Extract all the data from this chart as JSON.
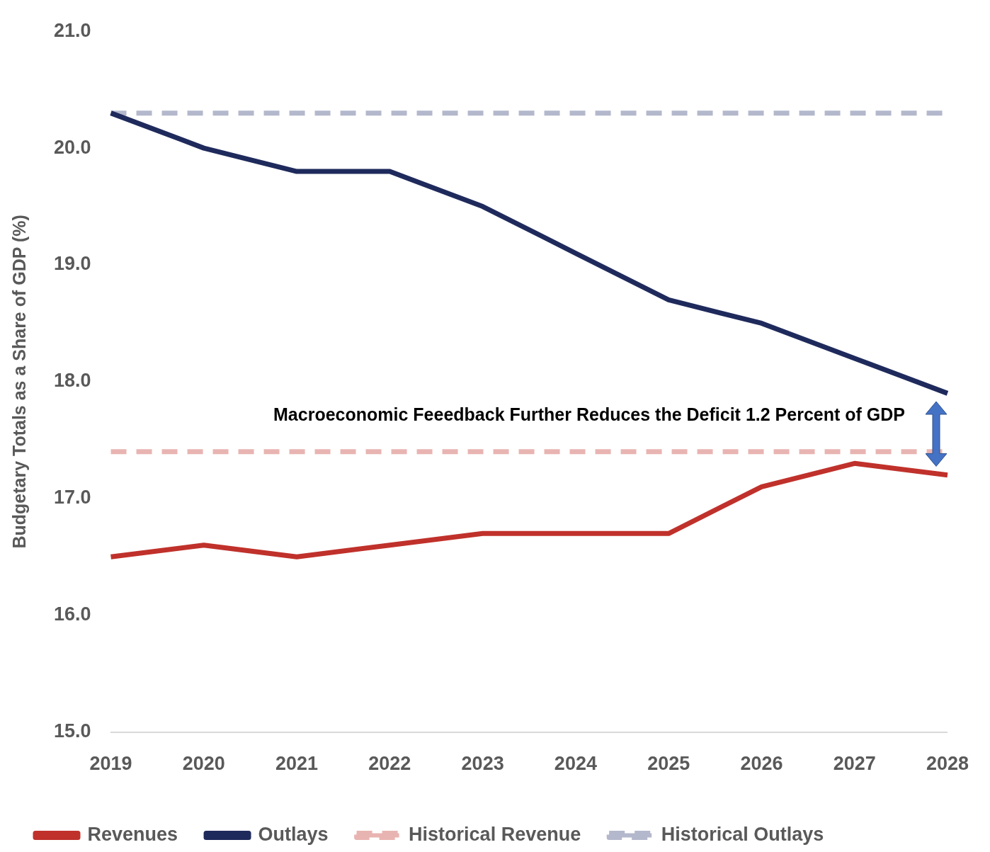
{
  "chart_data": {
    "type": "line",
    "ylabel": "Budgetary Totals as a Share of GDP (%)",
    "categories": [
      "2019",
      "2020",
      "2021",
      "2022",
      "2023",
      "2024",
      "2025",
      "2026",
      "2027",
      "2028"
    ],
    "series": [
      {
        "name": "Revenues",
        "color": "#c0312b",
        "values": [
          16.5,
          16.6,
          16.5,
          16.6,
          16.7,
          16.7,
          16.7,
          17.1,
          17.3,
          17.2
        ]
      },
      {
        "name": "Outlays",
        "color": "#1f2a5c",
        "values": [
          20.3,
          20.0,
          19.8,
          19.8,
          19.5,
          19.1,
          18.7,
          18.5,
          18.2,
          17.9
        ]
      },
      {
        "name": "Historical Revenue",
        "color": "#e8b4b1",
        "line_style": "dashed",
        "values": [
          17.4,
          17.4,
          17.4,
          17.4,
          17.4,
          17.4,
          17.4,
          17.4,
          17.4,
          17.4
        ]
      },
      {
        "name": "Historical Outlays",
        "color": "#b4b8cc",
        "line_style": "dashed",
        "values": [
          20.3,
          20.3,
          20.3,
          20.3,
          20.3,
          20.3,
          20.3,
          20.3,
          20.3,
          20.3
        ]
      }
    ],
    "ylim": [
      15,
      21
    ],
    "yticks": [
      {
        "value": 15,
        "label": "15.0"
      },
      {
        "value": 16,
        "label": "16.0"
      },
      {
        "value": 17,
        "label": "17.0"
      },
      {
        "value": 18,
        "label": "18.0"
      },
      {
        "value": 19,
        "label": "19.0"
      },
      {
        "value": 20,
        "label": "20.0"
      },
      {
        "value": 21,
        "label": "21.0"
      }
    ],
    "grid": false,
    "legend": "bottom",
    "marker": "none",
    "annotations": [
      "Macroeconomic Feeedback Further Reduces the Deficit 1.2 Percent of GDP"
    ]
  }
}
